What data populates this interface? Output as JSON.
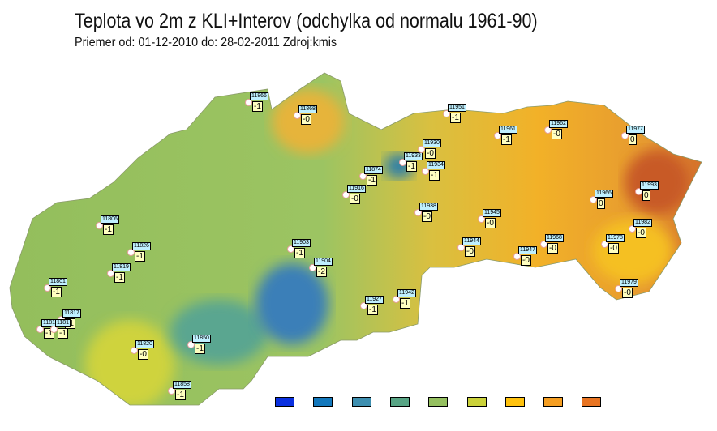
{
  "title": "Teplota vo 2m z KLI+Interov (odchylka od normalu 1961-90)",
  "subtitle": "Priemer od: 01-12-2010 do: 28-02-2011 Zdroj:kmis",
  "stations": [
    {
      "id": "11866",
      "value": "-1"
    },
    {
      "id": "11868",
      "value": "-0"
    },
    {
      "id": "11806",
      "value": "-1"
    },
    {
      "id": "11916",
      "value": "-0"
    },
    {
      "id": "11874",
      "value": "-1"
    },
    {
      "id": "11933",
      "value": "-1"
    },
    {
      "id": "11930",
      "value": "-0"
    },
    {
      "id": "11934",
      "value": "-1"
    },
    {
      "id": "11951",
      "value": "-1"
    },
    {
      "id": "11961",
      "value": "-1"
    },
    {
      "id": "11962",
      "value": "-0"
    },
    {
      "id": "11977",
      "value": "0"
    },
    {
      "id": "11993",
      "value": "0"
    },
    {
      "id": "11966",
      "value": "0"
    },
    {
      "id": "11938",
      "value": "-0"
    },
    {
      "id": "11945",
      "value": "-0"
    },
    {
      "id": "11982",
      "value": "-0"
    },
    {
      "id": "11944",
      "value": "-0"
    },
    {
      "id": "11947",
      "value": "-0"
    },
    {
      "id": "11968",
      "value": "-0"
    },
    {
      "id": "11978",
      "value": "-0"
    },
    {
      "id": "11979",
      "value": "-0"
    },
    {
      "id": "11826",
      "value": "-1"
    },
    {
      "id": "11819",
      "value": "-1"
    },
    {
      "id": "11801",
      "value": "-1"
    },
    {
      "id": "11903",
      "value": "-1"
    },
    {
      "id": "11904",
      "value": "-2"
    },
    {
      "id": "11927",
      "value": "-1"
    },
    {
      "id": "11942",
      "value": "-1"
    },
    {
      "id": "11817",
      "value": "-1"
    },
    {
      "id": "1181",
      "value": "-1"
    },
    {
      "id": "1181",
      "value": "-1"
    },
    {
      "id": "11820",
      "value": "-0"
    },
    {
      "id": "11850",
      "value": "-1"
    },
    {
      "id": "11858",
      "value": "-1"
    }
  ],
  "legend_colors": [
    "#0a30e0",
    "#1378bc",
    "#3e8fb0",
    "#58a585",
    "#95c060",
    "#cbd23a",
    "#ffc20e",
    "#f59e22",
    "#e87422"
  ]
}
